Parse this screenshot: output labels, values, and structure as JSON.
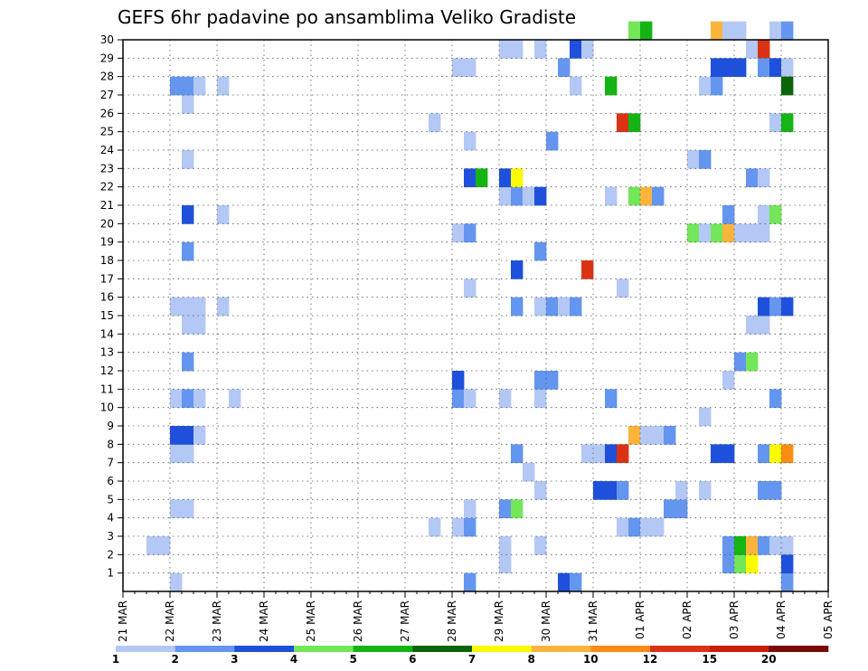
{
  "chart_data": {
    "type": "heatmap",
    "title": "GEFS 6hr padavine po ansamblima Veliko Gradiste",
    "x_tick_labels": [
      "21 MAR",
      "22 MAR",
      "23 MAR",
      "24 MAR",
      "25 MAR",
      "26 MAR",
      "27 MAR",
      "28 MAR",
      "29 MAR",
      "30 MAR",
      "31 MAR",
      "01 APR",
      "02 APR",
      "03 APR",
      "04 APR",
      "05 APR"
    ],
    "y_tick_labels": [
      "1",
      "2",
      "3",
      "4",
      "5",
      "6",
      "7",
      "8",
      "9",
      "10",
      "11",
      "12",
      "13",
      "14",
      "15",
      "16",
      "17",
      "18",
      "19",
      "20",
      "21",
      "22",
      "23",
      "24",
      "25",
      "26",
      "27",
      "28",
      "29",
      "30"
    ],
    "xlim": [
      0,
      60
    ],
    "ylim": [
      0,
      30
    ],
    "grid": true,
    "colorbar": {
      "levels": [
        "1",
        "2",
        "3",
        "4",
        "5",
        "6",
        "7",
        "8",
        "10",
        "12",
        "15",
        "20"
      ],
      "colors": [
        "#b4c8f5",
        "#6496f0",
        "#1e50dc",
        "#73e65a",
        "#14b414",
        "#0a640a",
        "#fafa00",
        "#fab43c",
        "#fa8c14",
        "#dc3214",
        "#c81e0a",
        "#780a0a"
      ]
    },
    "cells_note": "x = 6h step index from 21 MAR 00UTC, y = ensemble member, c = color class index",
    "cells": [
      {
        "x": 4,
        "y": 0,
        "c": 0
      },
      {
        "x": 2,
        "y": 2,
        "c": 0
      },
      {
        "x": 3,
        "y": 2,
        "c": 0
      },
      {
        "x": 4,
        "y": 4,
        "c": 0
      },
      {
        "x": 5,
        "y": 4,
        "c": 0
      },
      {
        "x": 4,
        "y": 7,
        "c": 0
      },
      {
        "x": 5,
        "y": 7,
        "c": 0
      },
      {
        "x": 4,
        "y": 8,
        "c": 2
      },
      {
        "x": 5,
        "y": 8,
        "c": 2
      },
      {
        "x": 6,
        "y": 8,
        "c": 0
      },
      {
        "x": 4,
        "y": 10,
        "c": 0
      },
      {
        "x": 5,
        "y": 10,
        "c": 1
      },
      {
        "x": 6,
        "y": 10,
        "c": 0
      },
      {
        "x": 9,
        "y": 10,
        "c": 0
      },
      {
        "x": 5,
        "y": 12,
        "c": 1
      },
      {
        "x": 5,
        "y": 14,
        "c": 0
      },
      {
        "x": 6,
        "y": 14,
        "c": 0
      },
      {
        "x": 4,
        "y": 15,
        "c": 0
      },
      {
        "x": 5,
        "y": 15,
        "c": 0
      },
      {
        "x": 6,
        "y": 15,
        "c": 0
      },
      {
        "x": 8,
        "y": 15,
        "c": 0
      },
      {
        "x": 5,
        "y": 18,
        "c": 1
      },
      {
        "x": 5,
        "y": 20,
        "c": 2
      },
      {
        "x": 8,
        "y": 20,
        "c": 0
      },
      {
        "x": 5,
        "y": 23,
        "c": 0
      },
      {
        "x": 5,
        "y": 26,
        "c": 0
      },
      {
        "x": 4,
        "y": 27,
        "c": 1
      },
      {
        "x": 5,
        "y": 27,
        "c": 1
      },
      {
        "x": 6,
        "y": 27,
        "c": 0
      },
      {
        "x": 8,
        "y": 27,
        "c": 0
      },
      {
        "x": 26,
        "y": 3,
        "c": 0
      },
      {
        "x": 26,
        "y": 25,
        "c": 0
      },
      {
        "x": 28,
        "y": 3,
        "c": 0
      },
      {
        "x": 29,
        "y": 3,
        "c": 1
      },
      {
        "x": 29,
        "y": 4,
        "c": 0
      },
      {
        "x": 29,
        "y": 0,
        "c": 1
      },
      {
        "x": 28,
        "y": 10,
        "c": 1
      },
      {
        "x": 29,
        "y": 10,
        "c": 0
      },
      {
        "x": 28,
        "y": 11,
        "c": 2
      },
      {
        "x": 29,
        "y": 16,
        "c": 0
      },
      {
        "x": 28,
        "y": 19,
        "c": 0
      },
      {
        "x": 29,
        "y": 19,
        "c": 1
      },
      {
        "x": 29,
        "y": 22,
        "c": 2
      },
      {
        "x": 30,
        "y": 22,
        "c": 4
      },
      {
        "x": 29,
        "y": 24,
        "c": 0
      },
      {
        "x": 28,
        "y": 28,
        "c": 0
      },
      {
        "x": 29,
        "y": 28,
        "c": 0
      },
      {
        "x": 32,
        "y": 1,
        "c": 0
      },
      {
        "x": 32,
        "y": 2,
        "c": 0
      },
      {
        "x": 32,
        "y": 4,
        "c": 1
      },
      {
        "x": 33,
        "y": 4,
        "c": 3
      },
      {
        "x": 33,
        "y": 7,
        "c": 1
      },
      {
        "x": 32,
        "y": 10,
        "c": 0
      },
      {
        "x": 33,
        "y": 15,
        "c": 1
      },
      {
        "x": 33,
        "y": 17,
        "c": 2
      },
      {
        "x": 32,
        "y": 21,
        "c": 0
      },
      {
        "x": 33,
        "y": 21,
        "c": 1
      },
      {
        "x": 32,
        "y": 22,
        "c": 2
      },
      {
        "x": 33,
        "y": 22,
        "c": 6
      },
      {
        "x": 32,
        "y": 29,
        "c": 0
      },
      {
        "x": 33,
        "y": 29,
        "c": 0
      },
      {
        "x": 34,
        "y": 6,
        "c": 0
      },
      {
        "x": 35,
        "y": 2,
        "c": 0
      },
      {
        "x": 35,
        "y": 5,
        "c": 0
      },
      {
        "x": 35,
        "y": 10,
        "c": 0
      },
      {
        "x": 35,
        "y": 11,
        "c": 1
      },
      {
        "x": 36,
        "y": 11,
        "c": 1
      },
      {
        "x": 35,
        "y": 15,
        "c": 0
      },
      {
        "x": 36,
        "y": 15,
        "c": 1
      },
      {
        "x": 35,
        "y": 18,
        "c": 1
      },
      {
        "x": 34,
        "y": 21,
        "c": 0
      },
      {
        "x": 35,
        "y": 21,
        "c": 2
      },
      {
        "x": 36,
        "y": 24,
        "c": 1
      },
      {
        "x": 35,
        "y": 29,
        "c": 0
      },
      {
        "x": 37,
        "y": 0,
        "c": 2
      },
      {
        "x": 38,
        "y": 0,
        "c": 1
      },
      {
        "x": 37,
        "y": 15,
        "c": 0
      },
      {
        "x": 38,
        "y": 15,
        "c": 1
      },
      {
        "x": 38,
        "y": 27,
        "c": 0
      },
      {
        "x": 37,
        "y": 28,
        "c": 1
      },
      {
        "x": 38,
        "y": 29,
        "c": 2
      },
      {
        "x": 39,
        "y": 29,
        "c": 0
      },
      {
        "x": 39,
        "y": 7,
        "c": 0
      },
      {
        "x": 40,
        "y": 7,
        "c": 0
      },
      {
        "x": 39,
        "y": 17,
        "c": 9
      },
      {
        "x": 40,
        "y": 5,
        "c": 2
      },
      {
        "x": 41,
        "y": 5,
        "c": 2
      },
      {
        "x": 42,
        "y": 5,
        "c": 1
      },
      {
        "x": 41,
        "y": 7,
        "c": 2
      },
      {
        "x": 42,
        "y": 7,
        "c": 9
      },
      {
        "x": 41,
        "y": 10,
        "c": 1
      },
      {
        "x": 41,
        "y": 21,
        "c": 0
      },
      {
        "x": 41,
        "y": 27,
        "c": 4
      },
      {
        "x": 42,
        "y": 3,
        "c": 0
      },
      {
        "x": 43,
        "y": 3,
        "c": 1
      },
      {
        "x": 44,
        "y": 3,
        "c": 0
      },
      {
        "x": 45,
        "y": 3,
        "c": 0
      },
      {
        "x": 42,
        "y": 16,
        "c": 0
      },
      {
        "x": 42,
        "y": 25,
        "c": 9
      },
      {
        "x": 43,
        "y": 25,
        "c": 4
      },
      {
        "x": 43,
        "y": 8,
        "c": 7
      },
      {
        "x": 44,
        "y": 8,
        "c": 0
      },
      {
        "x": 45,
        "y": 8,
        "c": 0
      },
      {
        "x": 46,
        "y": 8,
        "c": 1
      },
      {
        "x": 43,
        "y": 21,
        "c": 3
      },
      {
        "x": 44,
        "y": 21,
        "c": 7
      },
      {
        "x": 45,
        "y": 21,
        "c": 1
      },
      {
        "x": 43,
        "y": 30,
        "c": 3
      },
      {
        "x": 44,
        "y": 30,
        "c": 4
      },
      {
        "x": 46,
        "y": 4,
        "c": 1
      },
      {
        "x": 47,
        "y": 4,
        "c": 1
      },
      {
        "x": 47,
        "y": 5,
        "c": 0
      },
      {
        "x": 49,
        "y": 5,
        "c": 0
      },
      {
        "x": 49,
        "y": 9,
        "c": 0
      },
      {
        "x": 48,
        "y": 19,
        "c": 3
      },
      {
        "x": 49,
        "y": 19,
        "c": 0
      },
      {
        "x": 50,
        "y": 19,
        "c": 3
      },
      {
        "x": 51,
        "y": 19,
        "c": 7
      },
      {
        "x": 52,
        "y": 19,
        "c": 0
      },
      {
        "x": 53,
        "y": 19,
        "c": 0
      },
      {
        "x": 54,
        "y": 19,
        "c": 0
      },
      {
        "x": 48,
        "y": 23,
        "c": 0
      },
      {
        "x": 49,
        "y": 23,
        "c": 1
      },
      {
        "x": 49,
        "y": 27,
        "c": 0
      },
      {
        "x": 50,
        "y": 27,
        "c": 1
      },
      {
        "x": 50,
        "y": 28,
        "c": 2
      },
      {
        "x": 51,
        "y": 28,
        "c": 2
      },
      {
        "x": 52,
        "y": 28,
        "c": 2
      },
      {
        "x": 50,
        "y": 30,
        "c": 7
      },
      {
        "x": 51,
        "y": 30,
        "c": 0
      },
      {
        "x": 52,
        "y": 30,
        "c": 0
      },
      {
        "x": 51,
        "y": 1,
        "c": 1
      },
      {
        "x": 52,
        "y": 1,
        "c": 3
      },
      {
        "x": 53,
        "y": 1,
        "c": 6
      },
      {
        "x": 51,
        "y": 2,
        "c": 1
      },
      {
        "x": 52,
        "y": 2,
        "c": 4
      },
      {
        "x": 53,
        "y": 2,
        "c": 7
      },
      {
        "x": 54,
        "y": 2,
        "c": 1
      },
      {
        "x": 55,
        "y": 2,
        "c": 0
      },
      {
        "x": 56,
        "y": 2,
        "c": 0
      },
      {
        "x": 50,
        "y": 7,
        "c": 2
      },
      {
        "x": 51,
        "y": 7,
        "c": 2
      },
      {
        "x": 51,
        "y": 11,
        "c": 0
      },
      {
        "x": 51,
        "y": 20,
        "c": 1
      },
      {
        "x": 52,
        "y": 12,
        "c": 1
      },
      {
        "x": 53,
        "y": 12,
        "c": 3
      },
      {
        "x": 53,
        "y": 14,
        "c": 0
      },
      {
        "x": 54,
        "y": 14,
        "c": 0
      },
      {
        "x": 54,
        "y": 15,
        "c": 2
      },
      {
        "x": 55,
        "y": 15,
        "c": 1
      },
      {
        "x": 56,
        "y": 15,
        "c": 2
      },
      {
        "x": 53,
        "y": 22,
        "c": 1
      },
      {
        "x": 54,
        "y": 22,
        "c": 0
      },
      {
        "x": 53,
        "y": 29,
        "c": 0
      },
      {
        "x": 54,
        "y": 29,
        "c": 9
      },
      {
        "x": 54,
        "y": 5,
        "c": 1
      },
      {
        "x": 55,
        "y": 5,
        "c": 1
      },
      {
        "x": 54,
        "y": 7,
        "c": 1
      },
      {
        "x": 55,
        "y": 7,
        "c": 6
      },
      {
        "x": 56,
        "y": 7,
        "c": 8
      },
      {
        "x": 54,
        "y": 20,
        "c": 0
      },
      {
        "x": 55,
        "y": 20,
        "c": 3
      },
      {
        "x": 54,
        "y": 28,
        "c": 1
      },
      {
        "x": 55,
        "y": 28,
        "c": 2
      },
      {
        "x": 56,
        "y": 28,
        "c": 0
      },
      {
        "x": 55,
        "y": 10,
        "c": 1
      },
      {
        "x": 55,
        "y": 25,
        "c": 0
      },
      {
        "x": 56,
        "y": 25,
        "c": 4
      },
      {
        "x": 56,
        "y": 0,
        "c": 1
      },
      {
        "x": 56,
        "y": 1,
        "c": 2
      },
      {
        "x": 56,
        "y": 27,
        "c": 5
      },
      {
        "x": 55,
        "y": 30,
        "c": 0
      },
      {
        "x": 56,
        "y": 30,
        "c": 1
      }
    ]
  }
}
